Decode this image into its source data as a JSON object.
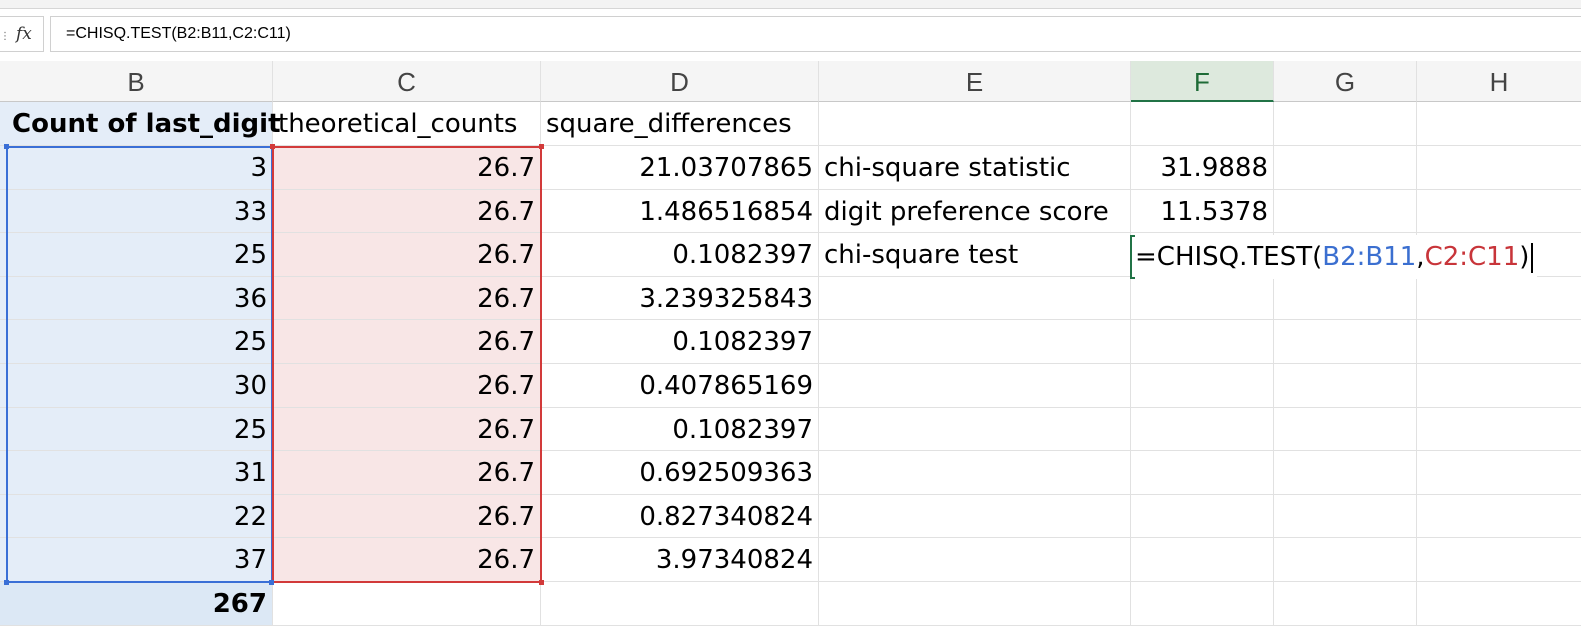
{
  "formula_bar": {
    "fx_label": "fx",
    "formula": "=CHISQ.TEST(B2:B11,C2:C11)"
  },
  "columns": [
    "B",
    "C",
    "D",
    "E",
    "F",
    "G",
    "H"
  ],
  "selected_column": "F",
  "headers": {
    "b": "Count of last_digit",
    "c": "theoretical_counts",
    "d": "square_differences"
  },
  "rows": [
    {
      "b": "3",
      "c": "26.7",
      "d": "21.03707865"
    },
    {
      "b": "33",
      "c": "26.7",
      "d": "1.486516854"
    },
    {
      "b": "25",
      "c": "26.7",
      "d": "0.1082397"
    },
    {
      "b": "36",
      "c": "26.7",
      "d": "3.239325843"
    },
    {
      "b": "25",
      "c": "26.7",
      "d": "0.1082397"
    },
    {
      "b": "30",
      "c": "26.7",
      "d": "0.407865169"
    },
    {
      "b": "25",
      "c": "26.7",
      "d": "0.1082397"
    },
    {
      "b": "31",
      "c": "26.7",
      "d": "0.692509363"
    },
    {
      "b": "22",
      "c": "26.7",
      "d": "0.827340824"
    },
    {
      "b": "37",
      "c": "26.7",
      "d": "3.97340824"
    }
  ],
  "total": "267",
  "stats": [
    {
      "label": "chi-square statistic",
      "value": "31.9888"
    },
    {
      "label": "digit preference score",
      "value": "11.5378"
    },
    {
      "label": "chi-square test",
      "value": ""
    }
  ],
  "editing": {
    "prefix": "=CHISQ.TEST(",
    "ref1": "B2:B11",
    "sep": ",",
    "ref2": "C2:C11",
    "suffix": ")"
  },
  "colors": {
    "range_b": "#3a6fd6",
    "range_c": "#d23a3a",
    "active_cell": "#217346"
  }
}
